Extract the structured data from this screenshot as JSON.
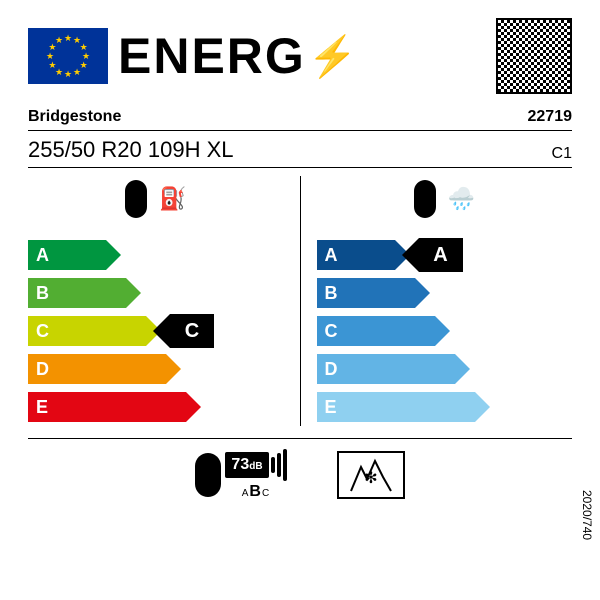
{
  "header": {
    "energy_word": "ENERG",
    "bolt": "⚡"
  },
  "brand": "Bridgestone",
  "article": "22719",
  "tyre_size": "255/50 R20 109H XL",
  "tyre_class": "C1",
  "fuel": {
    "classes": [
      "A",
      "B",
      "C",
      "D",
      "E"
    ],
    "colors": [
      "#009640",
      "#52ae32",
      "#c8d400",
      "#f39200",
      "#e30613"
    ],
    "widths": [
      70,
      90,
      110,
      130,
      150
    ],
    "badge": "C",
    "badge_index": 2
  },
  "wet": {
    "classes": [
      "A",
      "B",
      "C",
      "D",
      "E"
    ],
    "colors": [
      "#0a4d8c",
      "#2173b8",
      "#3b95d4",
      "#62b4e5",
      "#8fd0f0"
    ],
    "widths": [
      70,
      90,
      110,
      130,
      150
    ],
    "badge": "A",
    "badge_index": 0
  },
  "noise": {
    "value": "73",
    "unit": "dB",
    "classes": "ABC",
    "active_class": "B"
  },
  "snow_symbol": true,
  "regulation": "2020/740"
}
